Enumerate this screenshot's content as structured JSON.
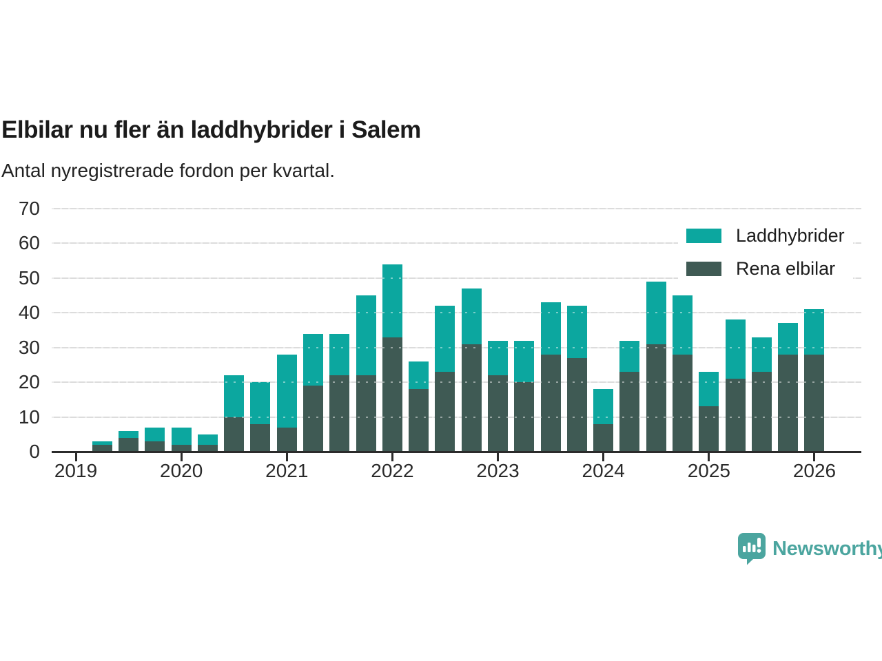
{
  "title": "Elbilar nu fler än laddhybrider i Salem",
  "subtitle": "Antal nyregistrerade fordon per kvartal.",
  "colors": {
    "laddhybrider": "#0ca79f",
    "rena_elbilar": "#3f5a54",
    "axis": "#2b2b2b",
    "gridline": "#dcdcdc",
    "brand_teal": "#4ba59f"
  },
  "legend": {
    "items": [
      {
        "label": "Laddhybrider",
        "color": "#0ca79f"
      },
      {
        "label": "Rena elbilar",
        "color": "#3f5a54"
      }
    ]
  },
  "footer": {
    "brand": "Newsworthy"
  },
  "chart_data": {
    "type": "bar",
    "stacked": true,
    "title": "Elbilar nu fler än laddhybrider i Salem",
    "subtitle": "Antal nyregistrerade fordon per kvartal.",
    "xlabel": "",
    "ylabel": "",
    "ylim": [
      0,
      70
    ],
    "yticks": [
      0,
      10,
      20,
      30,
      40,
      50,
      60,
      70
    ],
    "grid": true,
    "legend_position": "top-right",
    "x": [
      "2019-Q2",
      "2019-Q3",
      "2019-Q4",
      "2020-Q1",
      "2020-Q2",
      "2020-Q3",
      "2020-Q4",
      "2021-Q1",
      "2021-Q2",
      "2021-Q3",
      "2021-Q4",
      "2022-Q1",
      "2022-Q2",
      "2022-Q3",
      "2022-Q4",
      "2023-Q1",
      "2023-Q2",
      "2023-Q3",
      "2023-Q4",
      "2024-Q1",
      "2024-Q2",
      "2024-Q3",
      "2024-Q4",
      "2025-Q1",
      "2025-Q2",
      "2025-Q3",
      "2025-Q4",
      "2026-Q1"
    ],
    "xticks": [
      "2019",
      "2020",
      "2021",
      "2022",
      "2023",
      "2024",
      "2025",
      "2026"
    ],
    "series": [
      {
        "name": "Laddhybrider",
        "color": "#0ca79f",
        "values": [
          1,
          2,
          4,
          5,
          3,
          12,
          12,
          21,
          15,
          12,
          23,
          21,
          8,
          19,
          16,
          10,
          12,
          15,
          15,
          10,
          9,
          18,
          17,
          10,
          17,
          10,
          9,
          13
        ]
      },
      {
        "name": "Rena elbilar",
        "color": "#3f5a54",
        "values": [
          2,
          4,
          3,
          2,
          2,
          10,
          8,
          7,
          19,
          22,
          22,
          33,
          18,
          23,
          31,
          22,
          20,
          28,
          27,
          8,
          23,
          31,
          28,
          13,
          21,
          23,
          28,
          28
        ]
      }
    ],
    "totals": [
      3,
      6,
      7,
      7,
      5,
      22,
      20,
      28,
      34,
      34,
      45,
      54,
      26,
      42,
      47,
      32,
      32,
      43,
      42,
      18,
      32,
      49,
      45,
      23,
      38,
      33,
      37,
      41
    ]
  }
}
